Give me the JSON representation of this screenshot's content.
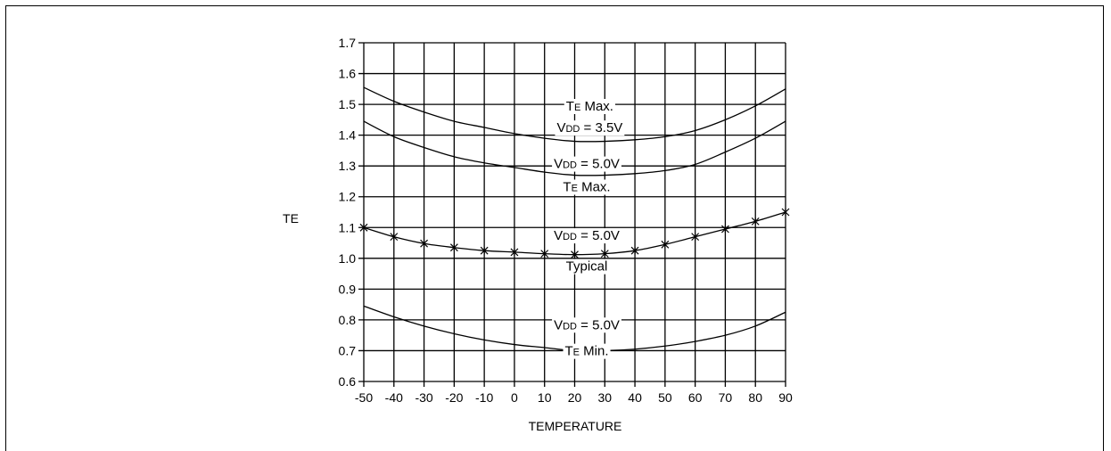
{
  "chart_data": {
    "type": "line",
    "xlabel": "TEMPERATURE",
    "ylabel": "TE",
    "xlim": [
      -50,
      90
    ],
    "ylim": [
      0.6,
      1.7
    ],
    "x_ticks": [
      -50,
      -40,
      -30,
      -20,
      -10,
      0,
      10,
      20,
      30,
      40,
      50,
      60,
      70,
      80,
      90
    ],
    "y_ticks": [
      0.6,
      0.7,
      0.8,
      0.9,
      1.0,
      1.1,
      1.2,
      1.3,
      1.4,
      1.5,
      1.6,
      1.7
    ],
    "grid": true,
    "series": [
      {
        "x": [
          -50,
          -40,
          -30,
          -20,
          -10,
          0,
          10,
          20,
          30,
          40,
          50,
          60,
          70,
          80,
          90
        ],
        "y": [
          1.555,
          1.51,
          1.475,
          1.445,
          1.425,
          1.405,
          1.39,
          1.38,
          1.38,
          1.385,
          1.395,
          1.415,
          1.45,
          1.495,
          1.55
        ],
        "markers": false
      },
      {
        "x": [
          -50,
          -40,
          -30,
          -20,
          -10,
          0,
          10,
          20,
          30,
          40,
          50,
          60,
          70,
          80,
          90
        ],
        "y": [
          1.445,
          1.395,
          1.36,
          1.33,
          1.31,
          1.295,
          1.28,
          1.27,
          1.27,
          1.275,
          1.285,
          1.305,
          1.345,
          1.39,
          1.445
        ],
        "markers": false
      },
      {
        "x": [
          -50,
          -40,
          -30,
          -20,
          -10,
          0,
          10,
          20,
          30,
          40,
          50,
          60,
          70,
          80,
          90
        ],
        "y": [
          1.1,
          1.07,
          1.048,
          1.035,
          1.025,
          1.02,
          1.015,
          1.012,
          1.015,
          1.025,
          1.045,
          1.07,
          1.095,
          1.12,
          1.15
        ],
        "markers": true
      },
      {
        "x": [
          -50,
          -40,
          -30,
          -20,
          -10,
          0,
          10,
          20,
          30,
          40,
          50,
          60,
          70,
          80,
          90
        ],
        "y": [
          0.845,
          0.81,
          0.78,
          0.755,
          0.735,
          0.72,
          0.71,
          0.7,
          0.7,
          0.705,
          0.715,
          0.73,
          0.75,
          0.78,
          0.825
        ],
        "markers": false
      }
    ],
    "annotations": [
      {
        "name": "annotation-te-max-35",
        "lines": [
          [
            "T",
            "E",
            " Max."
          ],
          [
            "V",
            "DD",
            " = 3.5V"
          ]
        ],
        "x": 25,
        "y": 1.48,
        "line_gap": 0.07
      },
      {
        "name": "annotation-te-max-50",
        "lines": [
          [
            "V",
            "DD",
            " = 5.0V"
          ],
          [
            "T",
            "E",
            " Max."
          ]
        ],
        "x": 24,
        "y": 1.293,
        "line_gap": 0.075
      },
      {
        "name": "annotation-typical",
        "lines": [
          [
            "V",
            "DD",
            " = 5.0V"
          ],
          [
            "Typical",
            "",
            ""
          ]
        ],
        "x": 24,
        "y": 1.06,
        "line_gap": 0.1
      },
      {
        "name": "annotation-te-min",
        "lines": [
          [
            "V",
            "DD",
            " = 5.0V"
          ],
          [
            "T",
            "E",
            " Min."
          ]
        ],
        "x": 24,
        "y": 0.77,
        "line_gap": 0.085
      }
    ]
  }
}
